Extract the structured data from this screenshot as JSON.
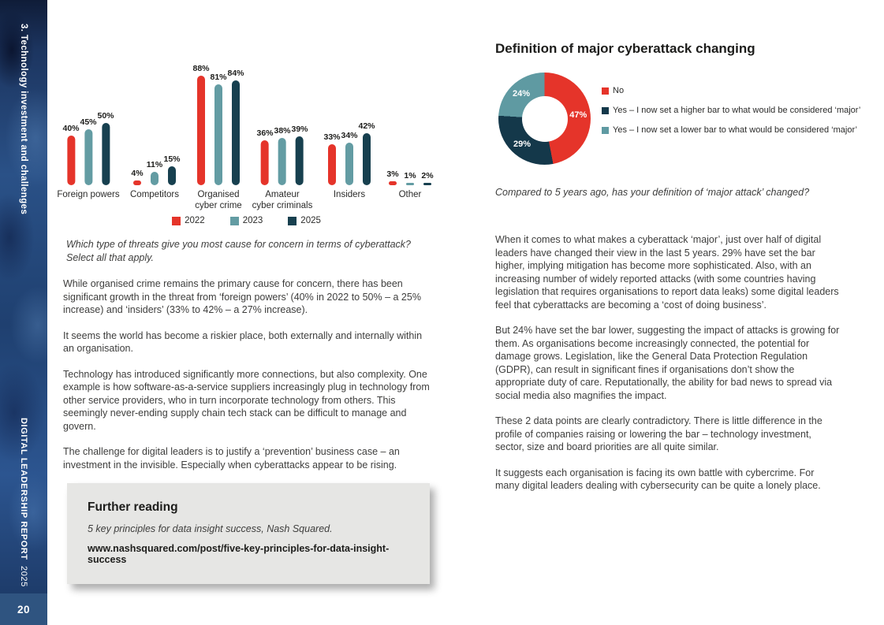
{
  "sidebar": {
    "section_label": "3. Technology investment and challenges",
    "report_title": "DIGITAL LEADERSHIP REPORT",
    "report_year": "2025",
    "page_number": "20"
  },
  "chart_data": [
    {
      "type": "bar",
      "title": "",
      "categories": [
        "Foreign powers",
        "Competitors",
        "Organised cyber crime",
        "Amateur cyber criminals",
        "Insiders",
        "Other"
      ],
      "category_lines": [
        [
          "Foreign powers"
        ],
        [
          "Competitors"
        ],
        [
          "Organised",
          "cyber crime"
        ],
        [
          "Amateur",
          "cyber criminals"
        ],
        [
          "Insiders"
        ],
        [
          "Other"
        ]
      ],
      "series": [
        {
          "name": "2022",
          "color": "#e5342a",
          "values": [
            40,
            4,
            88,
            36,
            33,
            3
          ]
        },
        {
          "name": "2023",
          "color": "#639ca3",
          "values": [
            45,
            11,
            81,
            38,
            34,
            1
          ]
        },
        {
          "name": "2025",
          "color": "#17404f",
          "values": [
            50,
            15,
            84,
            39,
            42,
            2
          ]
        }
      ],
      "value_suffix": "%",
      "ylim": [
        0,
        100
      ],
      "grid": false,
      "legend_position": "bottom"
    },
    {
      "type": "pie",
      "donut": true,
      "title": "Definition of major cyberattack changing",
      "labels": [
        "No",
        "Yes – I now set a higher bar to what would be considered ‘major’",
        "Yes – I now set a lower bar to what would be considered ‘major’"
      ],
      "values": [
        47,
        29,
        24
      ],
      "colors": [
        "#e5342a",
        "#14384a",
        "#5f9aa2"
      ],
      "value_suffix": "%",
      "legend_position": "right"
    }
  ],
  "left": {
    "question": "Which type of threats give you most cause for concern in terms of cyberattack?  Select all that apply.",
    "paragraphs": [
      "While organised crime remains the primary cause for concern, there has been significant growth in the threat from ‘foreign powers’ (40% in 2022 to 50% – a 25% increase) and ‘insiders’ (33% to 42% – a 27% increase).",
      "It seems the world has become a riskier place, both externally and internally within an organisation.",
      "Technology has introduced significantly more connections, but also complexity. One example is how software-as-a-service suppliers increasingly plug in technology from other service providers, who in turn incorporate technology from others. This seemingly never-ending supply chain tech stack can be difficult to manage and govern.",
      "The challenge for digital leaders is to justify a ‘prevention’ business case – an investment in the invisible. Especially when cyberattacks appear to be rising."
    ],
    "further_reading": {
      "title": "Further reading",
      "reference": "5 key principles for data insight success, Nash Squared.",
      "url": "www.nashsquared.com/post/five-key-principles-for-data-insight-success"
    }
  },
  "right": {
    "heading": "Definition of major cyberattack changing",
    "donut_caption": "Compared to 5 years ago, has your definition of ‘major attack’ changed?",
    "paragraphs": [
      "When it comes to what makes a cyberattack ‘major’, just over half of digital leaders have changed their view in the last 5 years. 29% have set the bar higher, implying mitigation has become more sophisticated. Also, with an increasing number of widely reported attacks (with some countries having legislation that requires organisations to report data leaks) some digital leaders feel that cyberattacks are becoming a ‘cost of doing business’.",
      "But 24% have set the bar lower, suggesting the impact of attacks is growing for them. As organisations become increasingly connected, the potential for damage grows. Legislation, like the General Data Protection Regulation (GDPR), can result in significant fines if organisations don’t show the appropriate duty of care. Reputationally, the ability for bad news to spread via social media also magnifies the impact.",
      "These 2 data points are clearly contradictory. There is little difference in the profile of companies raising or lowering the bar – technology investment, sector, size and board priorities are all quite similar.",
      "It suggests each organisation is facing its own battle with cybercrime. For many digital leaders dealing with cybersecurity can be quite a lonely place."
    ]
  },
  "colors": {
    "red": "#e5342a",
    "teal": "#5f9aa2",
    "navy": "#17404f",
    "donut_navy": "#14384a",
    "sidebar_blue": "#24487a",
    "page_block_blue": "#2f5480",
    "body_text": "#3e3e3d",
    "heading_text": "#1d1d1b",
    "box_gray": "#e6e6e4"
  }
}
